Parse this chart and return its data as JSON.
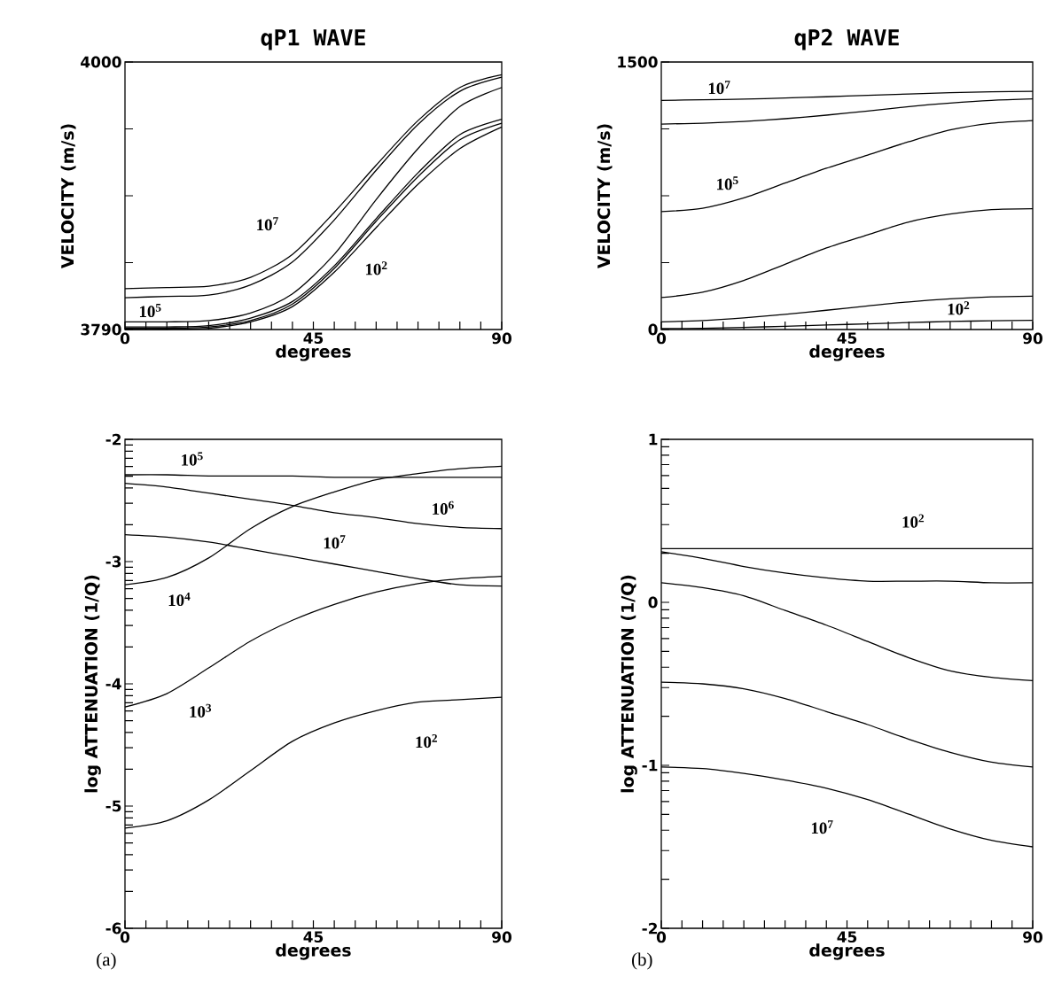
{
  "chart_data": [
    {
      "type": "line",
      "title": "qP1 WAVE",
      "xlabel": "degrees",
      "ylabel": "VELOCITY (m/s)",
      "x": [
        0,
        10,
        20,
        30,
        40,
        50,
        60,
        70,
        80,
        90
      ],
      "xlim": [
        0,
        90
      ],
      "ylim": [
        3790,
        4000
      ],
      "xticks": [
        0,
        {
          "value": 5,
          "label": null
        },
        {
          "value": 10,
          "label": null
        },
        {
          "value": 15,
          "label": null
        },
        {
          "value": 20,
          "label": null
        },
        {
          "value": 25,
          "label": null
        },
        {
          "value": 30,
          "label": null
        },
        {
          "value": 35,
          "label": null
        },
        {
          "value": 40,
          "label": null
        },
        45,
        {
          "value": 50,
          "label": null
        },
        {
          "value": 55,
          "label": null
        },
        {
          "value": 60,
          "label": null
        },
        {
          "value": 65,
          "label": null
        },
        {
          "value": 70,
          "label": null
        },
        {
          "value": 75,
          "label": null
        },
        {
          "value": 80,
          "label": null
        },
        {
          "value": 85,
          "label": null
        },
        90
      ],
      "yticks": [
        3790,
        {
          "value": 3842.5,
          "label": null
        },
        {
          "value": 3895,
          "label": null
        },
        {
          "value": 3947.5,
          "label": null
        },
        4000
      ],
      "series": [
        {
          "color": "#000000",
          "values": [
            3822,
            3823,
            3824,
            3831,
            3849,
            3882,
            3919,
            3954,
            3980,
            3990
          ]
        },
        {
          "color": "#000000",
          "values": [
            3815,
            3816,
            3817,
            3825,
            3843,
            3876,
            3915,
            3951,
            3977,
            3988
          ]
        },
        {
          "color": "#000000",
          "values": [
            3796,
            3796,
            3797,
            3803,
            3818,
            3849,
            3892,
            3932,
            3965,
            3980
          ]
        },
        {
          "color": "#000000",
          "values": [
            3792,
            3792,
            3793,
            3799,
            3812,
            3840,
            3877,
            3913,
            3943,
            3955
          ]
        },
        {
          "color": "#000000",
          "values": [
            3791,
            3791,
            3792,
            3797,
            3810,
            3838,
            3875,
            3910,
            3939,
            3952
          ]
        },
        {
          "color": "#000000",
          "values": [
            3790,
            3790,
            3791,
            3796,
            3808,
            3835,
            3870,
            3904,
            3932,
            3949
          ]
        }
      ],
      "annotations": [
        "10$^{7}$",
        "10$^{2}$",
        "10$^{5}$"
      ]
    },
    {
      "type": "line",
      "title": "qP2 WAVE",
      "xlabel": "degrees",
      "ylabel": "VELOCITY (m/s)",
      "x": [
        0,
        10,
        20,
        30,
        40,
        50,
        60,
        70,
        80,
        90
      ],
      "xlim": [
        0,
        90
      ],
      "ylim": [
        0,
        1500
      ],
      "xticks": [
        0,
        {
          "value": 5,
          "label": null
        },
        {
          "value": 10,
          "label": null
        },
        {
          "value": 15,
          "label": null
        },
        {
          "value": 20,
          "label": null
        },
        {
          "value": 25,
          "label": null
        },
        {
          "value": 30,
          "label": null
        },
        {
          "value": 35,
          "label": null
        },
        {
          "value": 40,
          "label": null
        },
        45,
        {
          "value": 50,
          "label": null
        },
        {
          "value": 55,
          "label": null
        },
        {
          "value": 60,
          "label": null
        },
        {
          "value": 65,
          "label": null
        },
        {
          "value": 70,
          "label": null
        },
        {
          "value": 75,
          "label": null
        },
        {
          "value": 80,
          "label": null
        },
        {
          "value": 85,
          "label": null
        },
        90
      ],
      "yticks": [
        0,
        {
          "value": 375,
          "label": null
        },
        {
          "value": 750,
          "label": null
        },
        {
          "value": 1125,
          "label": null
        },
        1500
      ],
      "series": [
        {
          "color": "#000000",
          "values": [
            1285,
            1288,
            1292,
            1298,
            1305,
            1313,
            1321,
            1328,
            1333,
            1335
          ]
        },
        {
          "color": "#000000",
          "values": [
            1152,
            1157,
            1167,
            1182,
            1202,
            1225,
            1250,
            1270,
            1285,
            1293
          ]
        },
        {
          "color": "#000000",
          "values": [
            661,
            680,
            738,
            821,
            904,
            978,
            1053,
            1119,
            1157,
            1172
          ]
        },
        {
          "color": "#000000",
          "values": [
            179,
            209,
            275,
            366,
            457,
            531,
            603,
            647,
            672,
            677
          ]
        },
        {
          "color": "#000000",
          "values": [
            43,
            50,
            65,
            85,
            108,
            132,
            155,
            172,
            183,
            187
          ]
        },
        {
          "color": "#000000",
          "values": [
            5,
            7,
            12,
            18,
            25,
            32,
            39,
            45,
            49,
            51
          ]
        }
      ],
      "annotations": [
        "10$^{7}$",
        "10$^{5}$",
        "10$^{2}$"
      ]
    },
    {
      "type": "line",
      "xlabel": "degrees",
      "ylabel": "log ATTENUATION (1/Q)",
      "x": [
        0,
        10,
        20,
        30,
        40,
        50,
        60,
        70,
        80,
        90
      ],
      "xlim": [
        0,
        90
      ],
      "ylim": [
        -6,
        -2
      ],
      "xticks": [
        0,
        {
          "value": 5,
          "label": null
        },
        {
          "value": 10,
          "label": null
        },
        {
          "value": 15,
          "label": null
        },
        {
          "value": 20,
          "label": null
        },
        {
          "value": 25,
          "label": null
        },
        {
          "value": 30,
          "label": null
        },
        {
          "value": 35,
          "label": null
        },
        {
          "value": 40,
          "label": null
        },
        45,
        {
          "value": 50,
          "label": null
        },
        {
          "value": 55,
          "label": null
        },
        {
          "value": 60,
          "label": null
        },
        {
          "value": 65,
          "label": null
        },
        {
          "value": 70,
          "label": null
        },
        {
          "value": 75,
          "label": null
        },
        {
          "value": 80,
          "label": null
        },
        {
          "value": 85,
          "label": null
        },
        90
      ],
      "yticks": [
        -6,
        {
          "value": -5.699,
          "label": null
        },
        {
          "value": -5.523,
          "label": null
        },
        {
          "value": -5.398,
          "label": null
        },
        {
          "value": -5.301,
          "label": null
        },
        {
          "value": -5.222,
          "label": null
        },
        {
          "value": -5.155,
          "label": null
        },
        {
          "value": -5.097,
          "label": null
        },
        {
          "value": -5.046,
          "label": null
        },
        -5,
        {
          "value": -4.699,
          "label": null
        },
        {
          "value": -4.523,
          "label": null
        },
        {
          "value": -4.398,
          "label": null
        },
        {
          "value": -4.301,
          "label": null
        },
        {
          "value": -4.222,
          "label": null
        },
        {
          "value": -4.155,
          "label": null
        },
        {
          "value": -4.097,
          "label": null
        },
        {
          "value": -4.046,
          "label": null
        },
        -4,
        {
          "value": -3.699,
          "label": null
        },
        {
          "value": -3.523,
          "label": null
        },
        {
          "value": -3.398,
          "label": null
        },
        {
          "value": -3.301,
          "label": null
        },
        {
          "value": -3.222,
          "label": null
        },
        {
          "value": -3.155,
          "label": null
        },
        {
          "value": -3.097,
          "label": null
        },
        {
          "value": -3.046,
          "label": null
        },
        -3,
        {
          "value": -2.699,
          "label": null
        },
        {
          "value": -2.523,
          "label": null
        },
        {
          "value": -2.398,
          "label": null
        },
        {
          "value": -2.301,
          "label": null
        },
        {
          "value": -2.222,
          "label": null
        },
        {
          "value": -2.155,
          "label": null
        },
        {
          "value": -2.097,
          "label": null
        },
        {
          "value": -2.046,
          "label": null
        },
        -2
      ],
      "series": [
        {
          "color": "#000000",
          "values": [
            -2.29,
            -2.29,
            -2.3,
            -2.3,
            -2.3,
            -2.31,
            -2.31,
            -2.31,
            -2.31,
            -2.31
          ]
        },
        {
          "color": "#000000",
          "values": [
            -2.36,
            -2.39,
            -2.44,
            -2.49,
            -2.54,
            -2.6,
            -2.64,
            -2.69,
            -2.72,
            -2.73
          ]
        },
        {
          "color": "#000000",
          "values": [
            -2.78,
            -2.8,
            -2.84,
            -2.9,
            -2.96,
            -3.02,
            -3.08,
            -3.14,
            -3.19,
            -3.2
          ]
        },
        {
          "color": "#000000",
          "values": [
            -3.19,
            -3.13,
            -2.97,
            -2.73,
            -2.55,
            -2.43,
            -2.33,
            -2.28,
            -2.24,
            -2.22
          ]
        },
        {
          "color": "#000000",
          "values": [
            -4.19,
            -4.08,
            -3.87,
            -3.65,
            -3.48,
            -3.35,
            -3.25,
            -3.18,
            -3.14,
            -3.12
          ]
        },
        {
          "color": "#000000",
          "values": [
            -5.18,
            -5.12,
            -4.95,
            -4.71,
            -4.47,
            -4.32,
            -4.22,
            -4.15,
            -4.13,
            -4.11
          ]
        }
      ],
      "annotations": [
        "10$^{5}$",
        "10$^{6}$",
        "10$^{7}$",
        "10$^{4}$",
        "10$^{3}$",
        "10$^{2}$",
        "(a)"
      ]
    },
    {
      "type": "line",
      "xlabel": "degrees",
      "ylabel": "log ATTENUATION (1/Q)",
      "x": [
        0,
        10,
        20,
        30,
        40,
        50,
        60,
        70,
        80,
        90
      ],
      "xlim": [
        0,
        90
      ],
      "ylim": [
        -2,
        1
      ],
      "xticks": [
        0,
        {
          "value": 5,
          "label": null
        },
        {
          "value": 10,
          "label": null
        },
        {
          "value": 15,
          "label": null
        },
        {
          "value": 20,
          "label": null
        },
        {
          "value": 25,
          "label": null
        },
        {
          "value": 30,
          "label": null
        },
        {
          "value": 35,
          "label": null
        },
        {
          "value": 40,
          "label": null
        },
        45,
        {
          "value": 50,
          "label": null
        },
        {
          "value": 55,
          "label": null
        },
        {
          "value": 60,
          "label": null
        },
        {
          "value": 65,
          "label": null
        },
        {
          "value": 70,
          "label": null
        },
        {
          "value": 75,
          "label": null
        },
        {
          "value": 80,
          "label": null
        },
        {
          "value": 85,
          "label": null
        },
        90
      ],
      "yticks": [
        -2,
        {
          "value": -1.699,
          "label": null
        },
        {
          "value": -1.523,
          "label": null
        },
        {
          "value": -1.398,
          "label": null
        },
        {
          "value": -1.301,
          "label": null
        },
        {
          "value": -1.222,
          "label": null
        },
        {
          "value": -1.155,
          "label": null
        },
        {
          "value": -1.097,
          "label": null
        },
        {
          "value": -1.046,
          "label": null
        },
        -1,
        {
          "value": -0.699,
          "label": null
        },
        {
          "value": -0.523,
          "label": null
        },
        {
          "value": -0.398,
          "label": null
        },
        {
          "value": -0.301,
          "label": null
        },
        {
          "value": -0.222,
          "label": null
        },
        {
          "value": -0.155,
          "label": null
        },
        {
          "value": -0.097,
          "label": null
        },
        {
          "value": -0.046,
          "label": null
        },
        0,
        {
          "value": 0.301,
          "label": null
        },
        {
          "value": 0.477,
          "label": null
        },
        {
          "value": 0.602,
          "label": null
        },
        {
          "value": 0.699,
          "label": null
        },
        {
          "value": 0.778,
          "label": null
        },
        {
          "value": 0.845,
          "label": null
        },
        {
          "value": 0.903,
          "label": null
        },
        {
          "value": 0.954,
          "label": null
        },
        1
      ],
      "series": [
        {
          "color": "#000000",
          "values": [
            0.33,
            0.33,
            0.33,
            0.33,
            0.33,
            0.33,
            0.33,
            0.33,
            0.33,
            0.33
          ]
        },
        {
          "color": "#000000",
          "values": [
            0.31,
            0.27,
            0.22,
            0.18,
            0.15,
            0.13,
            0.13,
            0.13,
            0.12,
            0.12
          ]
        },
        {
          "color": "#000000",
          "values": [
            0.12,
            0.09,
            0.04,
            -0.05,
            -0.14,
            -0.24,
            -0.34,
            -0.42,
            -0.46,
            -0.48
          ]
        },
        {
          "color": "#000000",
          "values": [
            -0.49,
            -0.5,
            -0.53,
            -0.59,
            -0.67,
            -0.75,
            -0.84,
            -0.92,
            -0.98,
            -1.01
          ]
        },
        {
          "color": "#000000",
          "values": [
            -1.01,
            -1.02,
            -1.05,
            -1.09,
            -1.14,
            -1.21,
            -1.3,
            -1.39,
            -1.46,
            -1.5
          ]
        }
      ],
      "annotations": [
        "10$^{2}$",
        "10$^{7}$",
        "(b)"
      ]
    }
  ]
}
